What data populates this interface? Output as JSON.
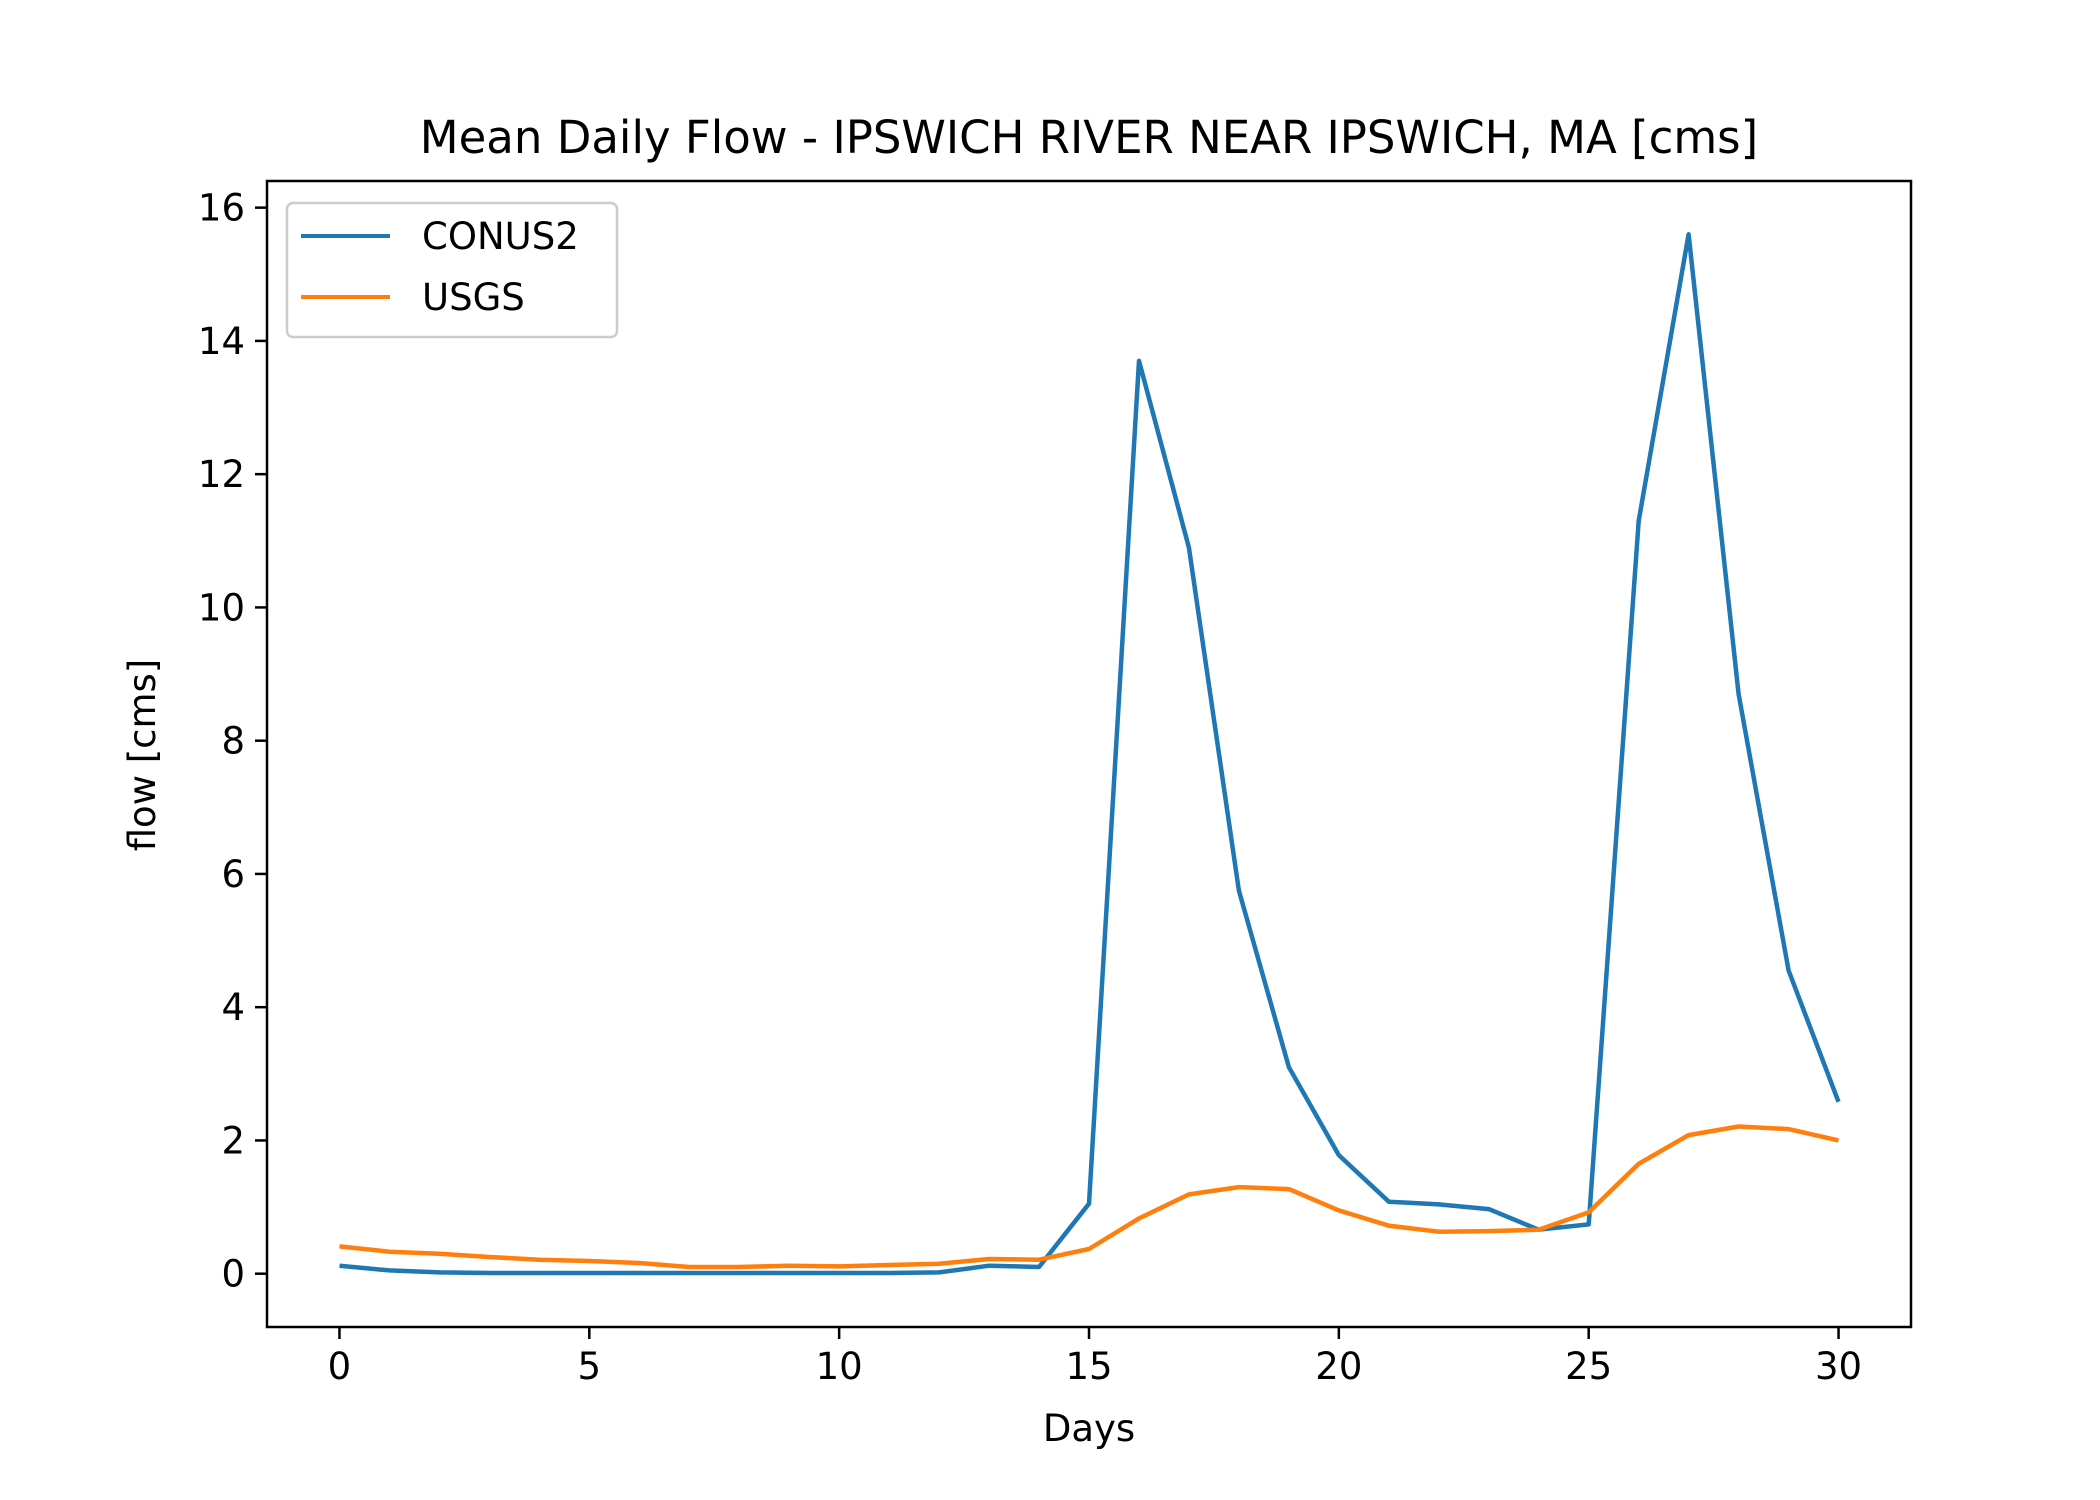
{
  "chart_data": {
    "type": "line",
    "title": "Mean Daily Flow - IPSWICH RIVER NEAR IPSWICH, MA [cms]",
    "xlabel": "Days",
    "ylabel": "flow [cms]",
    "xlim": [
      -1.45,
      31.45
    ],
    "ylim": [
      -0.8,
      16.4
    ],
    "xticks": [
      0,
      5,
      10,
      15,
      20,
      25,
      30
    ],
    "yticks": [
      0,
      2,
      4,
      6,
      8,
      10,
      12,
      14,
      16
    ],
    "grid": false,
    "legend_position": "top-left",
    "x": [
      0,
      1,
      2,
      3,
      4,
      5,
      6,
      7,
      8,
      9,
      10,
      11,
      12,
      13,
      14,
      15,
      16,
      17,
      18,
      19,
      20,
      21,
      22,
      23,
      24,
      25,
      26,
      27,
      28,
      29,
      30
    ],
    "series": [
      {
        "name": "CONUS2",
        "color": "#1f77b4",
        "values": [
          0.12,
          0.05,
          0.02,
          0.01,
          0.01,
          0.01,
          0.01,
          0.01,
          0.01,
          0.01,
          0.01,
          0.01,
          0.02,
          0.12,
          0.1,
          1.05,
          13.7,
          10.9,
          5.75,
          3.1,
          1.78,
          1.08,
          1.04,
          0.97,
          0.66,
          0.74,
          11.3,
          15.6,
          8.7,
          4.55,
          2.58
        ]
      },
      {
        "name": "USGS",
        "color": "#ff7f0e",
        "values": [
          0.41,
          0.33,
          0.3,
          0.25,
          0.21,
          0.19,
          0.16,
          0.1,
          0.1,
          0.12,
          0.11,
          0.13,
          0.15,
          0.22,
          0.21,
          0.37,
          0.83,
          1.19,
          1.3,
          1.27,
          0.95,
          0.72,
          0.63,
          0.64,
          0.66,
          0.92,
          1.65,
          2.08,
          2.21,
          2.17,
          2.0
        ]
      }
    ]
  }
}
